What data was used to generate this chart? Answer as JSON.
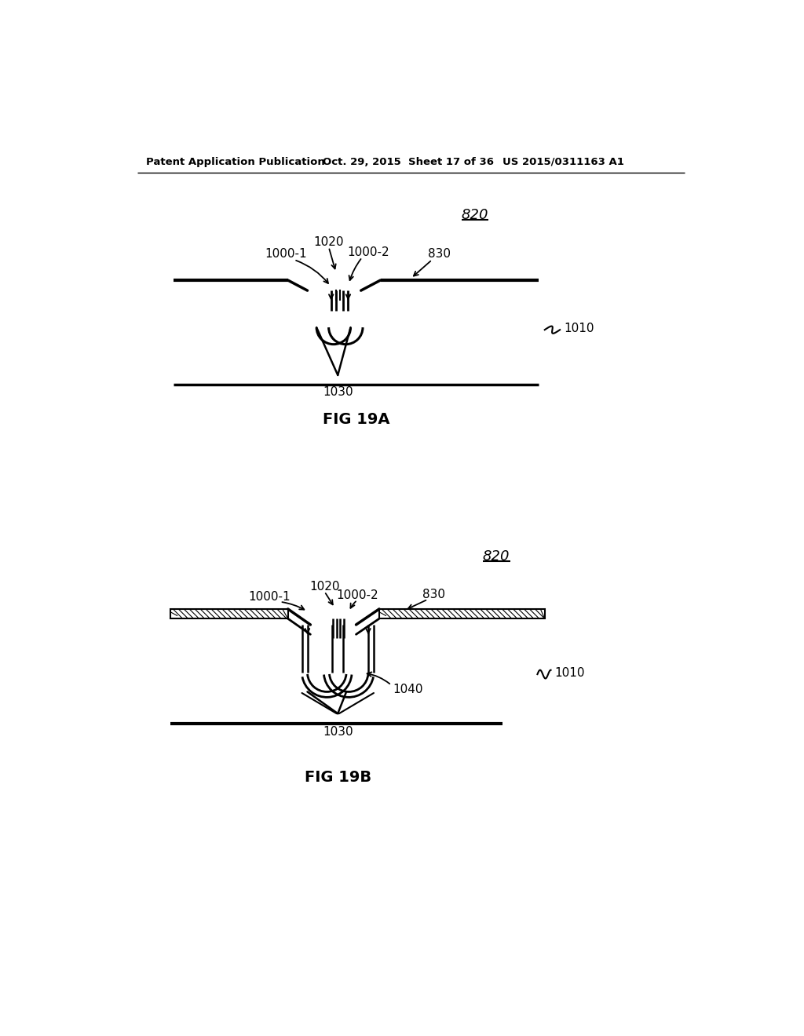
{
  "background_color": "#ffffff",
  "header_left": "Patent Application Publication",
  "header_mid": "Oct. 29, 2015  Sheet 17 of 36",
  "header_right": "US 2015/0311163 A1",
  "fig_a_caption": "FIG 19A",
  "fig_b_caption": "FIG 19B",
  "ref_820": "820",
  "ref_830": "830",
  "ref_1000_1": "1000-1",
  "ref_1000_2": "1000-2",
  "ref_1010": "1010",
  "ref_1020": "1020",
  "ref_1030": "1030",
  "ref_1040": "1040"
}
